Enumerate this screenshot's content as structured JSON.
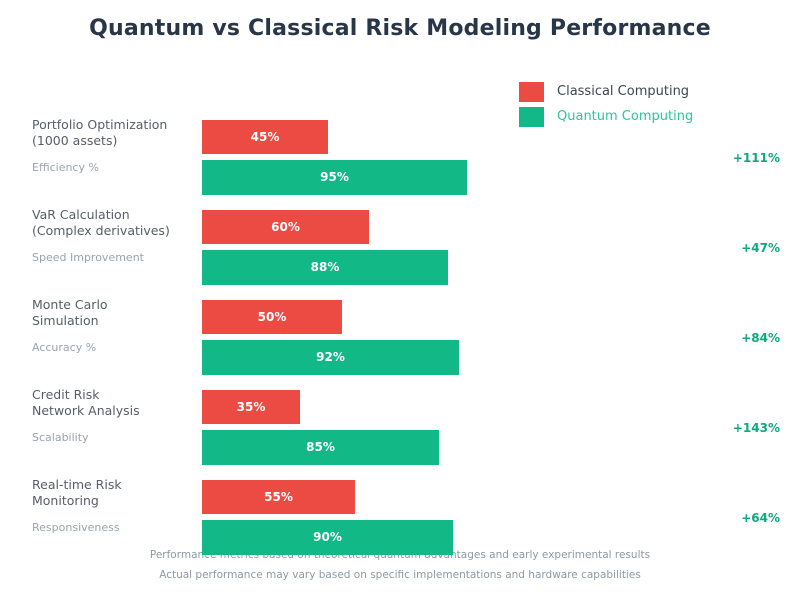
{
  "chart_data": {
    "type": "bar",
    "orientation": "horizontal",
    "title": "Quantum vs Classical Risk Modeling Performance",
    "value_unit": "%",
    "axis_range": [
      0,
      100
    ],
    "grid": false,
    "legend_position": "top-right",
    "series": [
      {
        "name": "Classical Computing",
        "color": "#ec4b44",
        "label_color": "#3c4650"
      },
      {
        "name": "Quantum Computing",
        "color": "#12b886",
        "label_color": "#2bc79a"
      }
    ],
    "improvement_color": "#0eaa7f",
    "categories": [
      {
        "label_lines": [
          "Portfolio Optimization",
          "(1000 assets)"
        ],
        "metric": "Efficiency %",
        "classical": 45,
        "quantum": 95,
        "improvement": "+111%"
      },
      {
        "label_lines": [
          "VaR Calculation",
          "(Complex derivatives)"
        ],
        "metric": "Speed Improvement",
        "classical": 60,
        "quantum": 88,
        "improvement": "+47%"
      },
      {
        "label_lines": [
          "Monte Carlo",
          "Simulation"
        ],
        "metric": "Accuracy %",
        "classical": 50,
        "quantum": 92,
        "improvement": "+84%"
      },
      {
        "label_lines": [
          "Credit Risk",
          "Network Analysis"
        ],
        "metric": "Scalability",
        "classical": 35,
        "quantum": 85,
        "improvement": "+143%"
      },
      {
        "label_lines": [
          "Real-time Risk",
          "Monitoring"
        ],
        "metric": "Responsiveness",
        "classical": 55,
        "quantum": 90,
        "improvement": "+64%"
      }
    ],
    "footnotes": [
      "Performance metrics based on theoretical quantum advantages and early experimental results",
      "Actual performance may vary based on specific implementations and hardware capabilities"
    ]
  }
}
